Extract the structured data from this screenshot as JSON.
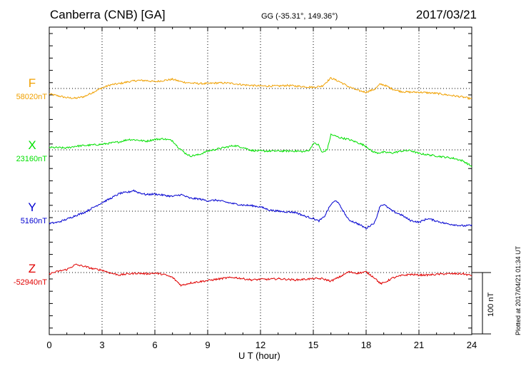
{
  "header": {
    "station": "Canberra (CNB)  [GA]",
    "coords": "GG (-35.31°, 149.36°)",
    "date": "2017/03/21"
  },
  "footer": {
    "plotted": "Plotted at 2017/04/21 01:34 UT"
  },
  "colors": {
    "F": "#f0a000",
    "X": "#00e000",
    "Y": "#0000d0",
    "Z": "#e00000"
  },
  "chart_data": {
    "type": "line",
    "title": "Canberra (CNB)  [GA]",
    "xlabel": "U T (hour)",
    "xlim": [
      0,
      24
    ],
    "xticks": [
      0,
      3,
      6,
      9,
      12,
      15,
      18,
      21,
      24
    ],
    "grid": true,
    "scale_bar": "100 nT",
    "scale_bar_nT": 100,
    "series": [
      {
        "name": "F",
        "baseline": "58020nT",
        "baseline_nT": 58020,
        "points": [
          [
            0,
            -9
          ],
          [
            0.5,
            -12
          ],
          [
            1,
            -15
          ],
          [
            1.5,
            -16
          ],
          [
            2,
            -13
          ],
          [
            2.5,
            -6
          ],
          [
            3,
            1
          ],
          [
            3.5,
            6
          ],
          [
            4,
            8
          ],
          [
            4.5,
            11
          ],
          [
            5,
            13
          ],
          [
            5.5,
            13
          ],
          [
            6,
            11
          ],
          [
            6.5,
            13
          ],
          [
            7,
            15
          ],
          [
            7.5,
            11
          ],
          [
            8,
            9
          ],
          [
            8.5,
            8
          ],
          [
            9,
            8
          ],
          [
            9.5,
            9
          ],
          [
            10,
            9
          ],
          [
            10.5,
            8
          ],
          [
            11,
            6
          ],
          [
            11.5,
            5
          ],
          [
            12,
            4
          ],
          [
            12.5,
            4
          ],
          [
            13,
            4
          ],
          [
            13.5,
            5
          ],
          [
            14,
            4
          ],
          [
            14.5,
            3
          ],
          [
            15,
            2
          ],
          [
            15.5,
            4
          ],
          [
            16,
            17
          ],
          [
            16.5,
            11
          ],
          [
            17,
            3
          ],
          [
            17.5,
            -3
          ],
          [
            18,
            -6
          ],
          [
            18.5,
            -1
          ],
          [
            18.8,
            7
          ],
          [
            19,
            6
          ],
          [
            19.5,
            -1
          ],
          [
            20,
            -5
          ],
          [
            20.5,
            -6
          ],
          [
            21,
            -6
          ],
          [
            21.5,
            -7
          ],
          [
            22,
            -8
          ],
          [
            22.5,
            -10
          ],
          [
            23,
            -12
          ],
          [
            23.5,
            -14
          ],
          [
            24,
            -17
          ]
        ]
      },
      {
        "name": "X",
        "baseline": "23160nT",
        "baseline_nT": 23160,
        "points": [
          [
            0,
            4
          ],
          [
            1,
            3
          ],
          [
            1.5,
            6
          ],
          [
            2,
            7
          ],
          [
            3,
            9
          ],
          [
            3.5,
            11
          ],
          [
            4,
            13
          ],
          [
            4.5,
            17
          ],
          [
            5,
            16
          ],
          [
            5.5,
            14
          ],
          [
            6,
            17
          ],
          [
            6.5,
            18
          ],
          [
            7,
            15
          ],
          [
            7.3,
            5
          ],
          [
            7.7,
            -5
          ],
          [
            8,
            -10
          ],
          [
            8.5,
            -8
          ],
          [
            9,
            -2
          ],
          [
            9.5,
            1
          ],
          [
            10,
            4
          ],
          [
            10.5,
            7
          ],
          [
            11,
            4
          ],
          [
            11.5,
            -1
          ],
          [
            12,
            -2
          ],
          [
            12.5,
            -2
          ],
          [
            13,
            -2
          ],
          [
            14,
            -2
          ],
          [
            14.5,
            -3
          ],
          [
            14.8,
            0
          ],
          [
            15,
            11
          ],
          [
            15.3,
            8
          ],
          [
            15.5,
            -5
          ],
          [
            15.8,
            1
          ],
          [
            16,
            25
          ],
          [
            16.5,
            20
          ],
          [
            17,
            17
          ],
          [
            17.5,
            12
          ],
          [
            18,
            6
          ],
          [
            18.3,
            -2
          ],
          [
            18.6,
            -5
          ],
          [
            19,
            -4
          ],
          [
            19.5,
            -5
          ],
          [
            20,
            -2
          ],
          [
            20.5,
            -1
          ],
          [
            21,
            -6
          ],
          [
            21.5,
            -8
          ],
          [
            22,
            -10
          ],
          [
            22.5,
            -12
          ],
          [
            23,
            -14
          ],
          [
            23.5,
            -18
          ],
          [
            24,
            -27
          ]
        ]
      },
      {
        "name": "Y",
        "baseline": "5160nT",
        "baseline_nT": 5160,
        "points": [
          [
            0,
            -20
          ],
          [
            0.5,
            -18
          ],
          [
            1,
            -13
          ],
          [
            1.5,
            -7
          ],
          [
            2,
            -2
          ],
          [
            2.5,
            6
          ],
          [
            3,
            14
          ],
          [
            3.5,
            21
          ],
          [
            4,
            29
          ],
          [
            4.5,
            31
          ],
          [
            4.8,
            34
          ],
          [
            5,
            31
          ],
          [
            5.5,
            27
          ],
          [
            6,
            28
          ],
          [
            6.5,
            26
          ],
          [
            7,
            24
          ],
          [
            7.5,
            27
          ],
          [
            8,
            21
          ],
          [
            8.5,
            20
          ],
          [
            9,
            17
          ],
          [
            9.5,
            18
          ],
          [
            10,
            15
          ],
          [
            10.5,
            12
          ],
          [
            11,
            10
          ],
          [
            11.5,
            9
          ],
          [
            12,
            7
          ],
          [
            12.5,
            2
          ],
          [
            13,
            0
          ],
          [
            13.5,
            -1
          ],
          [
            14,
            -2
          ],
          [
            14.5,
            -8
          ],
          [
            15,
            -12
          ],
          [
            15.3,
            -16
          ],
          [
            15.6,
            -10
          ],
          [
            16,
            11
          ],
          [
            16.3,
            18
          ],
          [
            16.6,
            5
          ],
          [
            17,
            -14
          ],
          [
            17.5,
            -20
          ],
          [
            18,
            -28
          ],
          [
            18.5,
            -18
          ],
          [
            18.8,
            9
          ],
          [
            19,
            11
          ],
          [
            19.5,
            0
          ],
          [
            20,
            -6
          ],
          [
            20.5,
            -15
          ],
          [
            21,
            -18
          ],
          [
            21.5,
            -12
          ],
          [
            22,
            -16
          ],
          [
            22.5,
            -20
          ],
          [
            23,
            -22
          ],
          [
            23.5,
            -24
          ],
          [
            24,
            -23
          ]
        ]
      },
      {
        "name": "Z",
        "baseline": "-52940nT",
        "baseline_nT": -52940,
        "points": [
          [
            0,
            -2
          ],
          [
            0.5,
            2
          ],
          [
            1,
            5
          ],
          [
            1.5,
            13
          ],
          [
            2,
            10
          ],
          [
            2.5,
            6
          ],
          [
            3,
            4
          ],
          [
            3.5,
            -1
          ],
          [
            4,
            -4
          ],
          [
            4.5,
            -2
          ],
          [
            5,
            -1
          ],
          [
            5.5,
            -2
          ],
          [
            6,
            -1
          ],
          [
            6.5,
            -3
          ],
          [
            7,
            -8
          ],
          [
            7.5,
            -21
          ],
          [
            8,
            -17
          ],
          [
            8.5,
            -15
          ],
          [
            9,
            -13
          ],
          [
            9.5,
            -11
          ],
          [
            10,
            -9
          ],
          [
            10.5,
            -8
          ],
          [
            11,
            -10
          ],
          [
            11.5,
            -12
          ],
          [
            12,
            -11
          ],
          [
            12.5,
            -11
          ],
          [
            13,
            -10
          ],
          [
            13.5,
            -11
          ],
          [
            14,
            -12
          ],
          [
            14.5,
            -11
          ],
          [
            15,
            -10
          ],
          [
            15.5,
            -10
          ],
          [
            16,
            -14
          ],
          [
            16.5,
            -7
          ],
          [
            17,
            1
          ],
          [
            17.5,
            -1
          ],
          [
            18,
            1
          ],
          [
            18.5,
            -9
          ],
          [
            18.8,
            -18
          ],
          [
            19,
            -17
          ],
          [
            19.5,
            -9
          ],
          [
            20,
            -5
          ],
          [
            20.5,
            -3
          ],
          [
            21,
            -4
          ],
          [
            21.5,
            -4
          ],
          [
            22,
            -3
          ],
          [
            22.5,
            -2
          ],
          [
            23,
            -2
          ],
          [
            23.5,
            -2
          ],
          [
            24,
            -5
          ]
        ]
      }
    ]
  }
}
